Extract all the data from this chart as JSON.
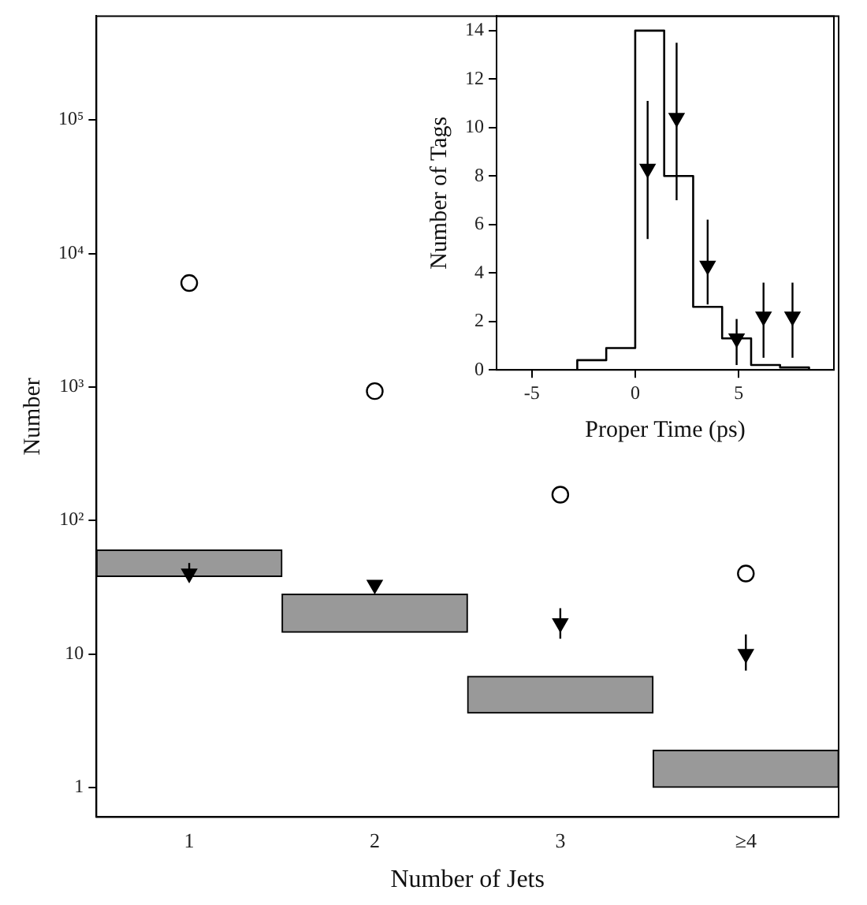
{
  "chart_data": [
    {
      "type": "scatter",
      "xlabel": "Number of Jets",
      "ylabel": "Number",
      "categories": [
        "1",
        "2",
        "3",
        "≥4"
      ],
      "log": "y",
      "ylim": [
        0.6,
        600000
      ],
      "yticks": [
        1,
        10,
        {
          "value": 100,
          "label": "10²"
        },
        {
          "value": 1000,
          "label": "10³"
        },
        {
          "value": 10000,
          "label": "10⁴"
        },
        {
          "value": 100000,
          "label": "10⁵"
        }
      ],
      "grid": false,
      "legend": false,
      "series": [
        {
          "type": "bar",
          "color": "#999999",
          "base": [
            38,
            14.5,
            3.6,
            1
          ],
          "values": [
            22,
            13.5,
            3.2,
            0.9
          ]
        },
        {
          "marker": "circle",
          "color": "#000000",
          "values": [
            6000,
            930,
            156,
            40
          ]
        },
        {
          "marker": "triangle",
          "color": "#000000",
          "values": [
            40,
            33,
            17,
            10
          ],
          "errors": [
            [
              35,
              48
            ],
            null,
            [
              13,
              22
            ],
            [
              7.5,
              14
            ]
          ]
        }
      ]
    },
    {
      "type": "histogram",
      "xlabel": "Proper Time (ps)",
      "ylabel": "Number of Tags",
      "xlim": [
        -6.7,
        9.6
      ],
      "ylim": [
        0,
        14.6
      ],
      "xticks": [
        -5,
        0,
        5
      ],
      "yticks": [
        0,
        2,
        4,
        6,
        8,
        10,
        12,
        14
      ],
      "grid": false,
      "legend": false,
      "series": [
        {
          "color": "#000000",
          "bins": [
            -2.8,
            -1.4,
            0,
            1.4,
            2.8,
            4.2,
            5.6,
            7,
            8.4
          ],
          "values": [
            0.4,
            0.9,
            14,
            8,
            2.6,
            1.3,
            0.2,
            0.1
          ]
        },
        {
          "type": "scatter",
          "marker": "triangle",
          "color": "#000000",
          "x": [
            0.6,
            2,
            3.5,
            4.9,
            6.2,
            7.6
          ],
          "values": [
            8.3,
            10.4,
            4.3,
            1.3,
            2.2,
            2.2
          ],
          "errors": [
            [
              5.4,
              11.1
            ],
            [
              7,
              13.5
            ],
            [
              2.7,
              6.2
            ],
            [
              0.2,
              2.1
            ],
            [
              0.5,
              3.6
            ],
            [
              0.5,
              3.6
            ]
          ]
        }
      ]
    }
  ]
}
